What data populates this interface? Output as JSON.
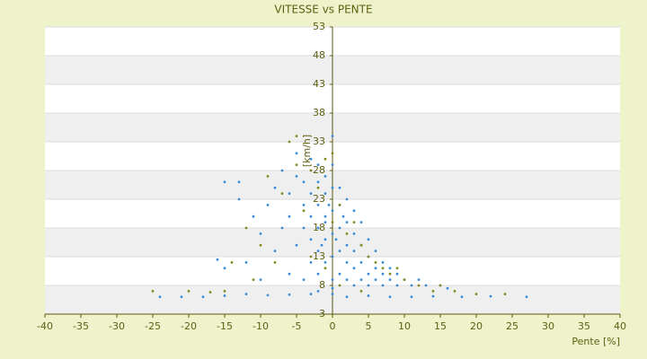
{
  "chart_data": {
    "type": "scatter",
    "title": "VITESSE vs PENTE",
    "x_label": "Pente [%]",
    "y_label": "[km/h]",
    "xlim": [
      -40,
      40
    ],
    "xticks": [
      -40,
      -35,
      -30,
      -25,
      -20,
      -15,
      -10,
      -5,
      0,
      5,
      10,
      15,
      20,
      25,
      30,
      35,
      40
    ],
    "ylim": [
      3,
      53
    ],
    "yticks": [
      3,
      8,
      13,
      18,
      23,
      28,
      33,
      38,
      43,
      48,
      53
    ],
    "grid": true,
    "series": [
      {
        "color": "#3a8edb",
        "x": [
          -24,
          -21,
          -18,
          -15,
          -12,
          -9,
          -6,
          -3,
          0,
          2,
          5,
          8,
          11,
          14,
          18,
          22,
          27,
          -15,
          -16,
          -15,
          -13,
          -13,
          -11,
          -10,
          -9,
          -8,
          -8,
          -7,
          -7,
          -6,
          -6,
          -5,
          -5,
          -5,
          -4,
          -4,
          -4,
          -3,
          -3,
          -3,
          -3,
          -3,
          -2,
          -2,
          -2,
          -2,
          -2,
          -1,
          -1,
          -1,
          -1,
          -1,
          0,
          0,
          0,
          0,
          0,
          0,
          1,
          1,
          1,
          1,
          1,
          2,
          2,
          2,
          2,
          2,
          3,
          3,
          3,
          3,
          3,
          4,
          4,
          4,
          4,
          5,
          5,
          5,
          5,
          6,
          6,
          6,
          7,
          7,
          7,
          8,
          8,
          9,
          9,
          10,
          11,
          12,
          13,
          15,
          16,
          -10,
          -12,
          -6,
          -4,
          -2,
          0,
          -1,
          -0.5,
          0.5,
          1.5,
          -1.5,
          0,
          -3,
          -2
        ],
        "y": [
          6,
          6,
          6,
          6.2,
          6.5,
          6.3,
          6.4,
          6.5,
          6.5,
          6,
          6.2,
          6,
          6,
          6.1,
          6,
          6.1,
          6,
          11,
          12.5,
          26,
          23,
          26,
          20,
          17,
          22,
          14,
          25,
          18,
          28,
          20,
          24,
          15,
          27,
          31,
          18,
          22,
          26,
          12,
          16,
          20,
          24,
          28,
          10,
          14,
          18,
          22,
          26,
          12,
          16,
          20,
          24,
          27,
          9,
          13,
          17,
          21,
          25,
          34,
          10,
          14,
          18,
          22,
          25,
          9,
          12,
          15,
          19,
          23,
          8,
          11,
          14,
          17,
          21,
          9,
          12,
          15,
          19,
          8,
          10,
          13,
          16,
          9,
          11,
          14,
          8,
          10,
          12,
          9,
          11,
          8,
          10,
          9,
          8,
          9,
          8,
          8,
          7.5,
          9,
          12,
          10,
          9,
          7,
          7.5,
          19,
          22,
          16,
          20,
          15,
          29,
          30,
          29
        ]
      },
      {
        "color": "#8a8a20",
        "x": [
          -25,
          -20,
          -17,
          -14,
          -12,
          -10,
          -9,
          -7,
          -6,
          -5,
          -5,
          -4,
          -3,
          -2,
          -1,
          0,
          0,
          1,
          2,
          3,
          4,
          5,
          6,
          7,
          8,
          9,
          10,
          12,
          14,
          15,
          20,
          24,
          17,
          -8,
          -11,
          -15,
          -3,
          1,
          4,
          -1
        ],
        "y": [
          7,
          7,
          6.8,
          12,
          18,
          15,
          27,
          24,
          33,
          34,
          29,
          21,
          28,
          25,
          30,
          31,
          19,
          22,
          17,
          19,
          15,
          13,
          12,
          11,
          10,
          11,
          9,
          8,
          7,
          8,
          6.5,
          6.5,
          7,
          12,
          9,
          7,
          13,
          8,
          7,
          11
        ]
      }
    ]
  }
}
